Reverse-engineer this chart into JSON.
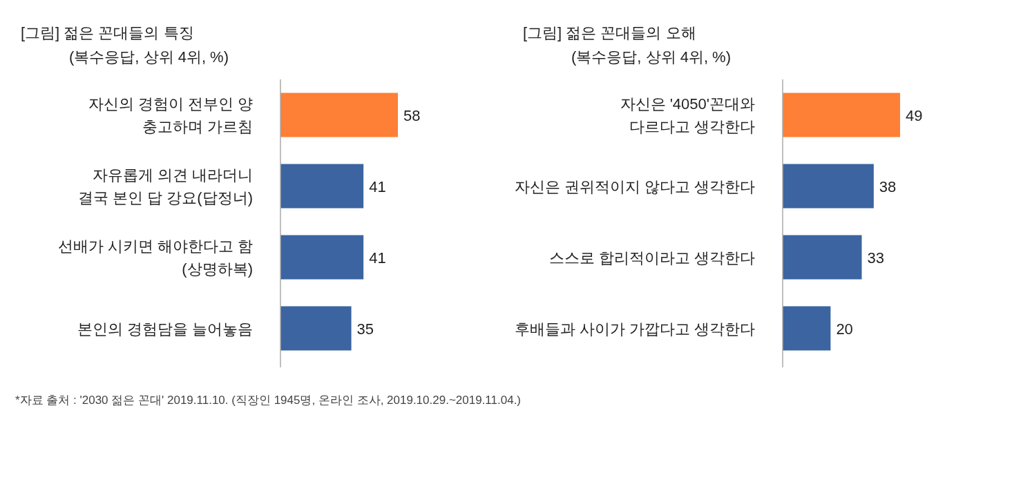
{
  "chart_data": [
    {
      "type": "bar",
      "orientation": "horizontal",
      "title": "[그림] 젊은 꼰대들의 특징",
      "subtitle": "(복수응답, 상위 4위, %)",
      "categories": [
        "자신의 경험이 전부인 양\n충고하며 가르침",
        "자유롭게 의견 내라더니\n결국 본인 답 강요(답정너)",
        "선배가 시키면 해야한다고 함\n(상명하복)",
        "본인의 경험담을 늘어놓음"
      ],
      "values": [
        58,
        41,
        41,
        35
      ],
      "colors": [
        "#fe7f36",
        "#3b64a0",
        "#3b64a0",
        "#3b64a0"
      ],
      "data_labels": true,
      "annotations": [
        "*자료 출처 : '2030 젊은 꼰대' 2019.11.10. (직장인 1945명, 온라인 조사, 2019.10.29.~2019.11.04.)"
      ]
    },
    {
      "type": "bar",
      "orientation": "horizontal",
      "title": "[그림] 젊은 꼰대들의 오해",
      "subtitle": "(복수응답, 상위 4위, %)",
      "categories": [
        "자신은 '4050'꼰대와\n다르다고 생각한다",
        "자신은 권위적이지 않다고 생각한다",
        "스스로 합리적이라고 생각한다",
        "후배들과 사이가 가깝다고 생각한다"
      ],
      "values": [
        49,
        38,
        33,
        20
      ],
      "colors": [
        "#fe7f36",
        "#3b64a0",
        "#3b64a0",
        "#3b64a0"
      ],
      "data_labels": true
    }
  ]
}
